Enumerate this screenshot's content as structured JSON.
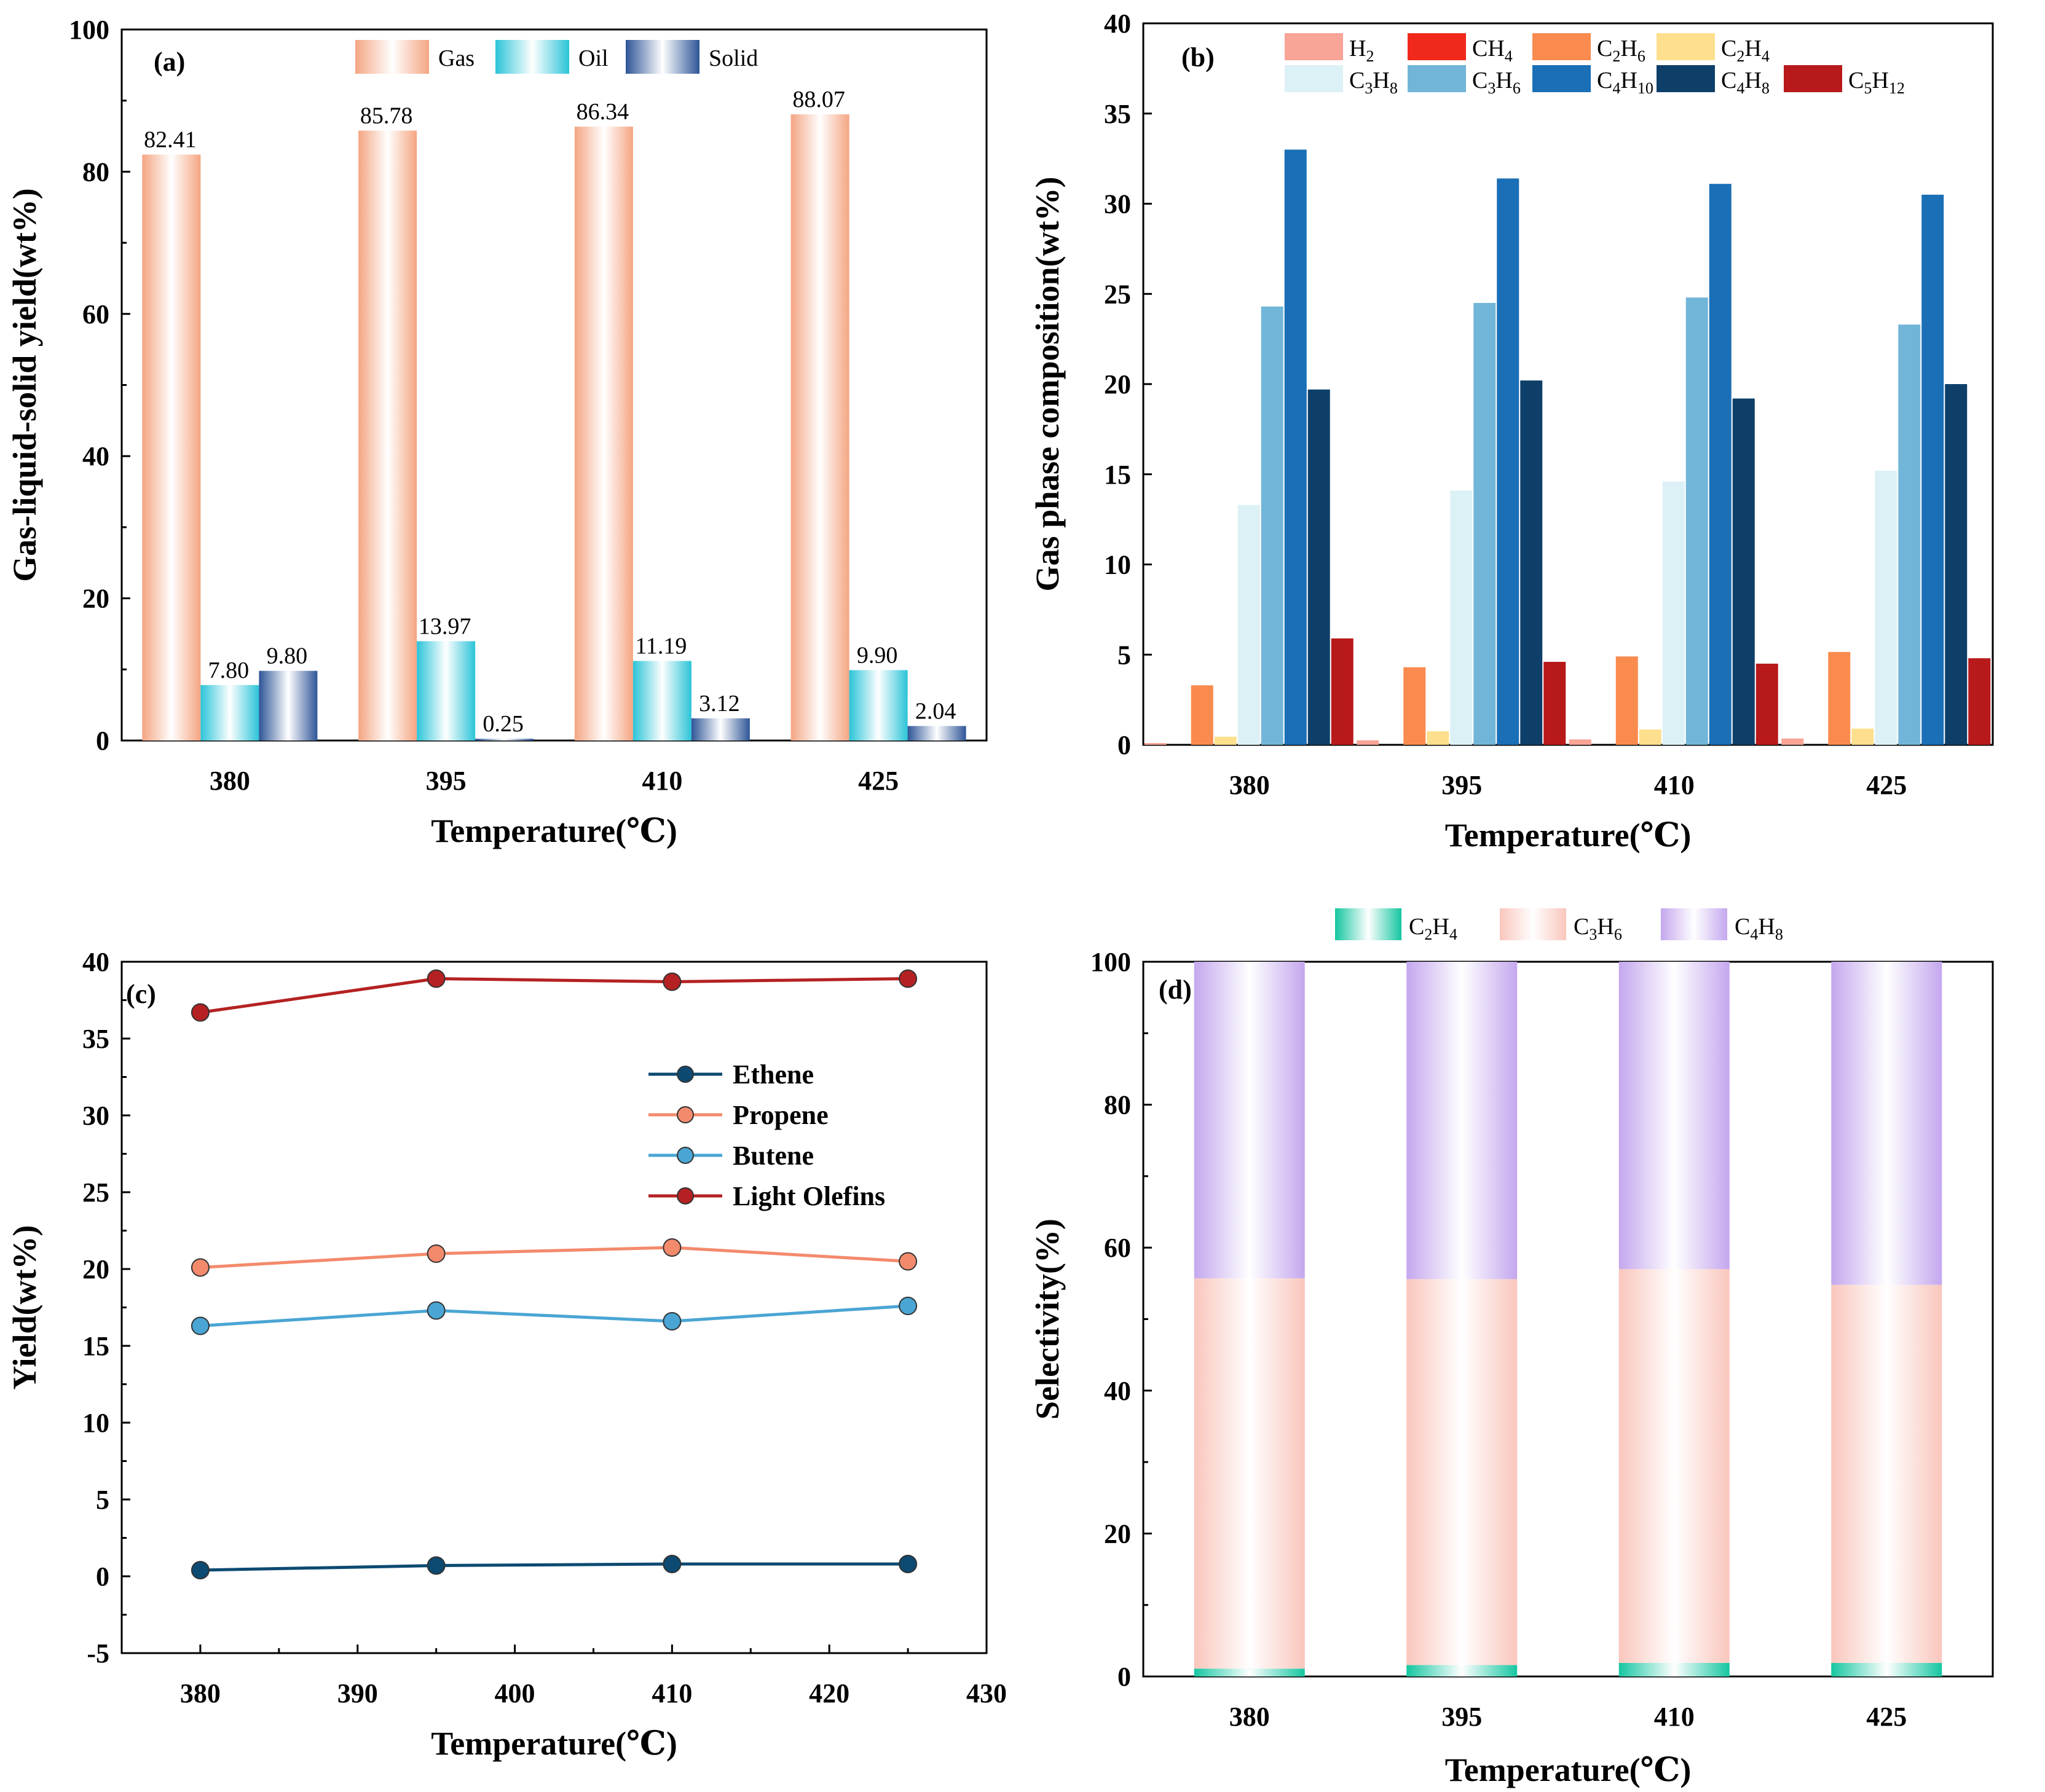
{
  "figure": {
    "panels": [
      {
        "id": "a",
        "label": "(a)"
      },
      {
        "id": "b",
        "label": "(b)"
      },
      {
        "id": "c",
        "label": "(c)"
      },
      {
        "id": "d",
        "label": "(d)"
      }
    ]
  },
  "chart_data": [
    {
      "id": "a",
      "type": "bar",
      "panel_label": "(a)",
      "title": "",
      "xlabel": "Temperature(℃)",
      "ylabel": "Gas-liquid-solid yield(wt%)",
      "categories": [
        "380",
        "395",
        "410",
        "425"
      ],
      "ylim": [
        0,
        100
      ],
      "yticks": [
        "0",
        "20",
        "40",
        "60",
        "80",
        "100"
      ],
      "legend_position": "top-center",
      "series": [
        {
          "name": "Gas",
          "color": "#f4a582",
          "values": [
            82.41,
            85.78,
            86.34,
            88.07
          ],
          "labels": [
            "82.41",
            "85.78",
            "86.34",
            "88.07"
          ]
        },
        {
          "name": "Oil",
          "color": "#2bc4d8",
          "values": [
            7.8,
            13.97,
            11.19,
            9.9
          ],
          "labels": [
            "7.80",
            "13.97",
            "11.19",
            "9.90"
          ]
        },
        {
          "name": "Solid",
          "color": "#2e5597",
          "values": [
            9.8,
            0.25,
            3.12,
            2.04
          ],
          "labels": [
            "9.80",
            "0.25",
            "3.12",
            "2.04"
          ]
        }
      ]
    },
    {
      "id": "b",
      "type": "bar",
      "panel_label": "(b)",
      "title": "",
      "xlabel": "Temperature(℃)",
      "ylabel": "Gas phase composition(wt%)",
      "categories": [
        "380",
        "395",
        "410",
        "425"
      ],
      "ylim": [
        0,
        40
      ],
      "yticks": [
        "0",
        "5",
        "10",
        "15",
        "20",
        "25",
        "30",
        "35",
        "40"
      ],
      "legend_position": "top-center",
      "series": [
        {
          "name": "H2",
          "base": "H",
          "sub": "2",
          "rest": "",
          "color": "#f8a497",
          "values": [
            0.1,
            0.25,
            0.3,
            0.35
          ]
        },
        {
          "name": "CH4",
          "base": "CH",
          "sub": "4",
          "rest": "",
          "color": "#f0291c",
          "values": [
            0.0,
            0.0,
            0.0,
            0.0
          ]
        },
        {
          "name": "C2H6",
          "base": "C",
          "sub": "2",
          "rest": "H6",
          "color": "#f98b4f",
          "values": [
            3.3,
            4.3,
            4.9,
            5.15
          ]
        },
        {
          "name": "C2H4",
          "base": "C",
          "sub": "2",
          "rest": "H4",
          "color": "#fddf8d",
          "values": [
            0.45,
            0.75,
            0.85,
            0.9
          ]
        },
        {
          "name": "C3H8",
          "base": "C",
          "sub": "3",
          "rest": "H8",
          "color": "#dcf1f6",
          "values": [
            13.3,
            14.1,
            14.6,
            15.2
          ]
        },
        {
          "name": "C3H6",
          "base": "C",
          "sub": "3",
          "rest": "H6",
          "color": "#71b6d8",
          "values": [
            24.3,
            24.5,
            24.8,
            23.3
          ]
        },
        {
          "name": "C4H10",
          "base": "C",
          "sub": "4",
          "rest": "H10",
          "color": "#1a6fb6",
          "values": [
            33.0,
            31.4,
            31.1,
            30.5
          ]
        },
        {
          "name": "C4H8",
          "base": "C",
          "sub": "4",
          "rest": "H8",
          "color": "#0d3f69",
          "values": [
            19.7,
            20.2,
            19.2,
            20.0
          ]
        },
        {
          "name": "C5H12",
          "base": "C",
          "sub": "5",
          "rest": "H12",
          "color": "#b8191b",
          "values": [
            5.9,
            4.6,
            4.5,
            4.8
          ]
        }
      ]
    },
    {
      "id": "c",
      "type": "line",
      "panel_label": "(c)",
      "title": "",
      "xlabel": "Temperature(℃)",
      "ylabel": "Yield(wt%)",
      "x": [
        380,
        395,
        410,
        425
      ],
      "xlim": [
        375,
        430
      ],
      "xticks": [
        "380",
        "390",
        "400",
        "410",
        "420",
        "430"
      ],
      "ylim": [
        -5,
        40
      ],
      "yticks": [
        "-5",
        "0",
        "5",
        "10",
        "15",
        "20",
        "25",
        "30",
        "35",
        "40"
      ],
      "legend_position": "upper-right",
      "series": [
        {
          "name": "Ethene",
          "color": "#0c4a71",
          "values": [
            0.4,
            0.7,
            0.8,
            0.8
          ]
        },
        {
          "name": "Propene",
          "color": "#f38a6c",
          "values": [
            20.1,
            21.0,
            21.4,
            20.5
          ]
        },
        {
          "name": "Butene",
          "color": "#4aa5d4",
          "values": [
            16.3,
            17.3,
            16.6,
            17.6
          ]
        },
        {
          "name": "Light Olefins",
          "color": "#b52123",
          "values": [
            36.7,
            38.9,
            38.7,
            38.9
          ]
        }
      ]
    },
    {
      "id": "d",
      "type": "bar",
      "stacked": true,
      "panel_label": "(d)",
      "title": "",
      "xlabel": "Temperature(℃)",
      "ylabel": "Selectivity(%)",
      "categories": [
        "380",
        "395",
        "410",
        "425"
      ],
      "ylim": [
        0,
        100
      ],
      "yticks": [
        "0",
        "20",
        "40",
        "60",
        "80",
        "100"
      ],
      "legend_position": "top-center",
      "series": [
        {
          "name": "C2H4",
          "base": "C",
          "sub": "2",
          "rest": "H4",
          "color": "#14c6a1",
          "values": [
            1.1,
            1.6,
            1.9,
            1.9
          ]
        },
        {
          "name": "C3H6",
          "base": "C",
          "sub": "3",
          "rest": "H6",
          "color": "#f9c6bc",
          "values": [
            54.6,
            54.0,
            55.1,
            52.9
          ]
        },
        {
          "name": "C4H8",
          "base": "C",
          "sub": "4",
          "rest": "H8",
          "color": "#c4a7ee",
          "values": [
            44.3,
            44.4,
            43.0,
            45.2
          ]
        }
      ]
    }
  ]
}
